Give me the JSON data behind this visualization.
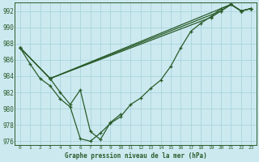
{
  "title": "Graphe pression niveau de la mer (hPa)",
  "bg_color": "#cce9f0",
  "grid_color": "#aad4dc",
  "line_color": "#2a5c2a",
  "marker_color": "#2a5c2a",
  "xlim": [
    -0.5,
    23.5
  ],
  "ylim": [
    975.5,
    993.0
  ],
  "yticks": [
    976,
    978,
    980,
    982,
    984,
    986,
    988,
    990,
    992
  ],
  "xticks": [
    0,
    1,
    2,
    3,
    4,
    5,
    6,
    7,
    8,
    9,
    10,
    11,
    12,
    13,
    14,
    15,
    16,
    17,
    18,
    19,
    20,
    21,
    22,
    23
  ],
  "series": [
    {
      "x": [
        0,
        1,
        2,
        3,
        4,
        5,
        6,
        7,
        8,
        9,
        10,
        11,
        12,
        13,
        14,
        15,
        16,
        17,
        18,
        19,
        20,
        21,
        22,
        23
      ],
      "y": [
        987.5,
        985.5,
        983.7,
        982.8,
        981.2,
        980.2,
        976.3,
        976.0,
        977.0,
        978.2,
        979.0,
        980.5,
        981.3,
        982.5,
        983.5,
        985.2,
        987.5,
        989.5,
        990.5,
        991.3,
        992.3,
        992.8,
        992.0,
        992.3
      ]
    },
    {
      "x": [
        0,
        3,
        21,
        22,
        23
      ],
      "y": [
        987.5,
        983.7,
        992.8,
        992.0,
        992.3
      ]
    },
    {
      "x": [
        0,
        3,
        20,
        21,
        22,
        23
      ],
      "y": [
        987.5,
        983.7,
        992.0,
        992.8,
        992.0,
        992.3
      ]
    },
    {
      "x": [
        0,
        3,
        19,
        20,
        21,
        22,
        23
      ],
      "y": [
        987.5,
        983.7,
        991.2,
        992.0,
        992.8,
        992.0,
        992.3
      ]
    },
    {
      "x": [
        3,
        4,
        5,
        6,
        7,
        8,
        9,
        10
      ],
      "y": [
        983.7,
        982.0,
        980.5,
        982.3,
        977.2,
        976.2,
        978.3,
        979.3
      ]
    }
  ],
  "figsize": [
    3.2,
    2.0
  ],
  "dpi": 100
}
